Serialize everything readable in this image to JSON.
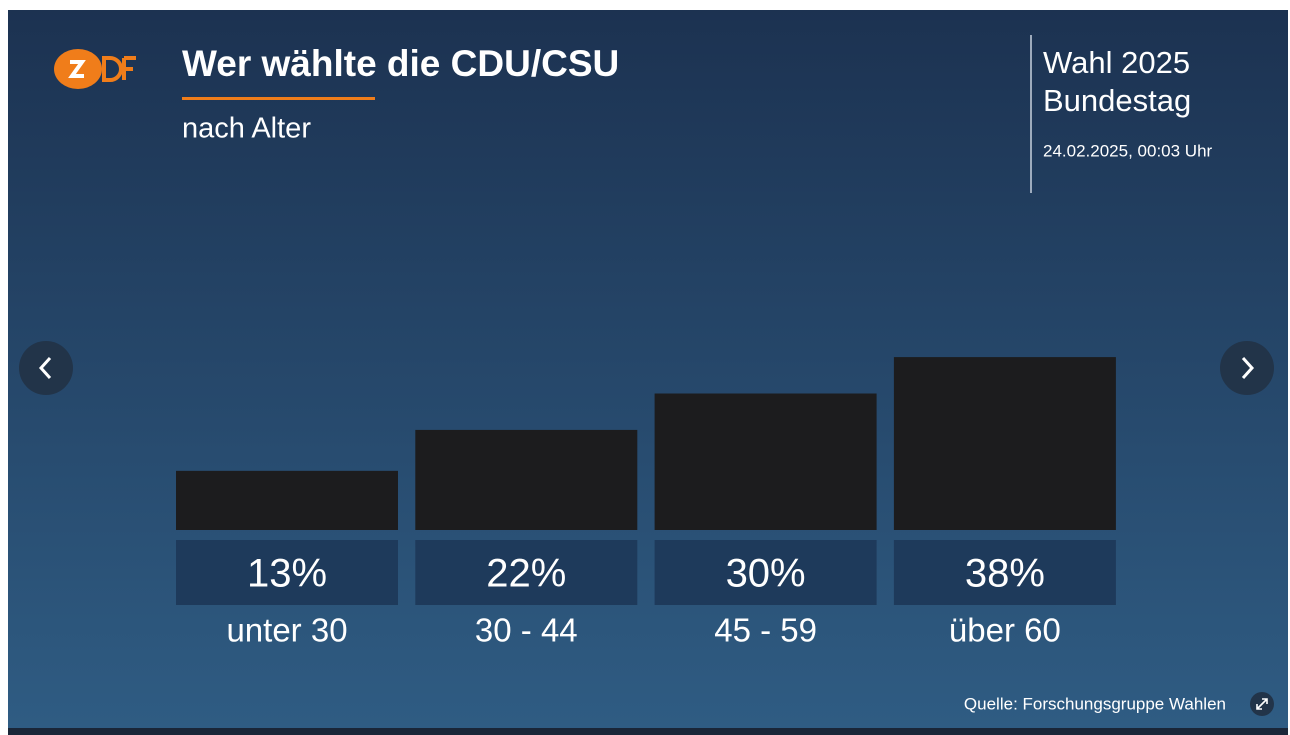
{
  "chart_data": {
    "type": "bar",
    "title": "Wer wählte die CDU/CSU",
    "subtitle": "nach Alter",
    "brand": [
      "Wahl 2025",
      "Bundestag"
    ],
    "date": "24.02.2025, 00:03 Uhr",
    "source": "Quelle: Forschungsgruppe Wahlen",
    "categories": [
      "unter 30",
      "30 - 44",
      "45 - 59",
      "über 60"
    ],
    "values": [
      13,
      22,
      30,
      38
    ],
    "value_labels": [
      "13%",
      "22%",
      "30%",
      "38%"
    ],
    "color": "#1c1c1e"
  }
}
